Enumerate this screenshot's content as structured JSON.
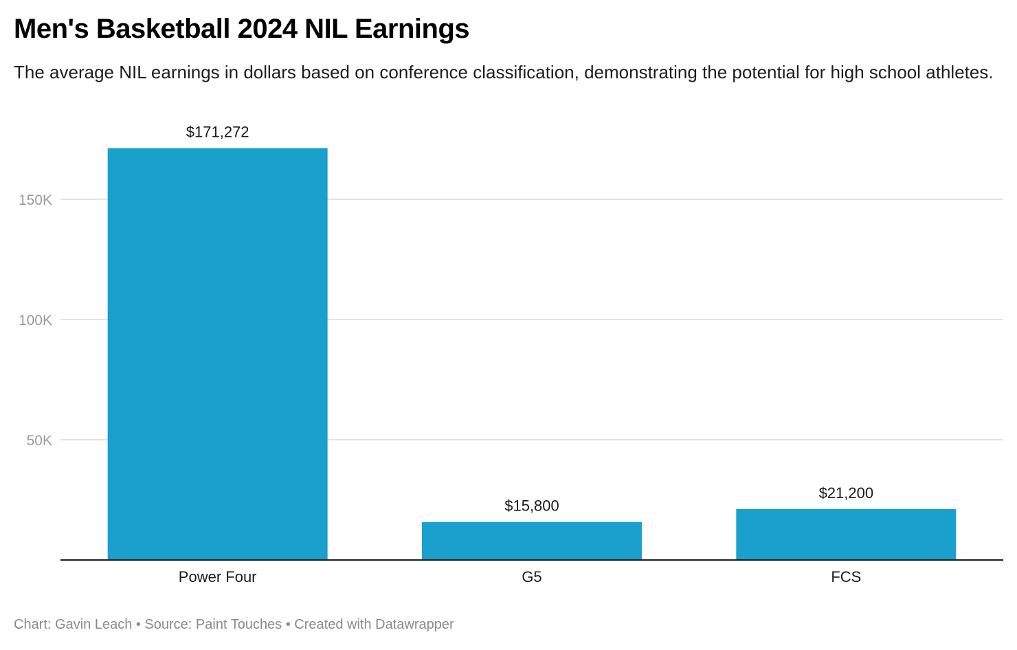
{
  "header": {
    "title": "Men's Basketball 2024 NIL Earnings",
    "subtitle": "The average NIL earnings in dollars based on conference classification, demonstrating the potential for high school athletes."
  },
  "footer": {
    "text": "Chart: Gavin Leach • Source: Paint Touches • Created with Datawrapper"
  },
  "colors": {
    "bar": "#1aa0cc",
    "grid": "#e3e3e3",
    "axis": "#1a1a1a",
    "tick_text": "#9a9a9a"
  },
  "chart_data": {
    "type": "bar",
    "title": "Men's Basketball 2024 NIL Earnings",
    "subtitle": "The average NIL earnings in dollars based on conference classification, demonstrating the potential for high school athletes.",
    "xlabel": "",
    "ylabel": "",
    "categories": [
      "Power Four",
      "G5",
      "FCS"
    ],
    "values": [
      171272,
      15800,
      21200
    ],
    "value_labels": [
      "$171,272",
      "$15,800",
      "$21,200"
    ],
    "ylim": [
      0,
      171272
    ],
    "yticks": [
      50000,
      100000,
      150000
    ],
    "ytick_labels": [
      "50K",
      "100K",
      "150K"
    ],
    "grid": true,
    "legend": "none"
  }
}
